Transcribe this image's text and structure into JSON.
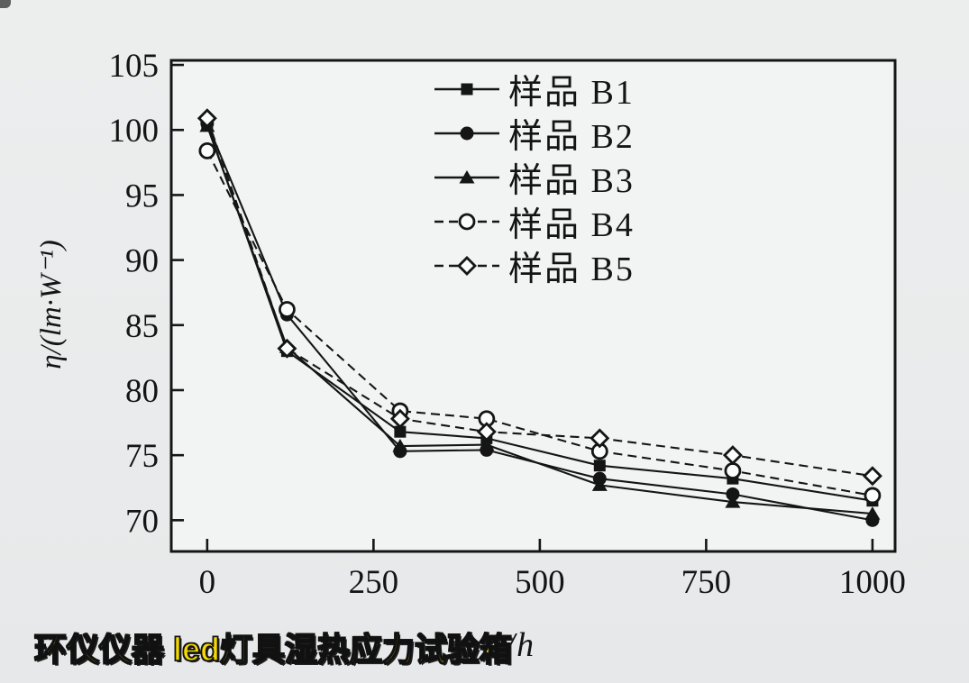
{
  "watermark": {
    "text": "环仪仪器 led灯具湿热应力试验箱",
    "color": "#f4da00"
  },
  "chart_data": {
    "type": "line",
    "title": "",
    "xlabel": "t/h",
    "ylabel": "η/(lm·W⁻¹)",
    "x_ticks": [
      0,
      250,
      500,
      750,
      1000
    ],
    "y_ticks": [
      105,
      100,
      95,
      90,
      85,
      80,
      75,
      70
    ],
    "xlim": [
      -54,
      1034
    ],
    "ylim": [
      67.6,
      105.35
    ],
    "grid": false,
    "legend_position": "upper-center",
    "line_color": "#151515",
    "x": [
      0,
      120,
      290,
      420,
      590,
      790,
      1000
    ],
    "series": [
      {
        "name": "样品 B1",
        "marker": "filled-square",
        "line": "solid",
        "values": [
          100.4,
          83.0,
          76.8,
          76.3,
          74.2,
          73.2,
          71.5
        ]
      },
      {
        "name": "样品 B2",
        "marker": "filled-circle",
        "line": "solid",
        "values": [
          100.5,
          85.8,
          75.3,
          75.4,
          73.2,
          72.0,
          70.0
        ]
      },
      {
        "name": "样品 B3",
        "marker": "filled-triangle",
        "line": "solid",
        "values": [
          100.3,
          83.3,
          75.7,
          75.8,
          72.7,
          71.4,
          70.5
        ]
      },
      {
        "name": "样品 B4",
        "marker": "open-circle",
        "line": "dashed",
        "values": [
          98.4,
          86.2,
          78.4,
          77.8,
          75.3,
          73.8,
          71.9
        ]
      },
      {
        "name": "样品 B5",
        "marker": "open-diamond",
        "line": "dashed",
        "values": [
          100.9,
          83.2,
          77.8,
          76.8,
          76.3,
          75.0,
          73.4
        ]
      }
    ]
  }
}
